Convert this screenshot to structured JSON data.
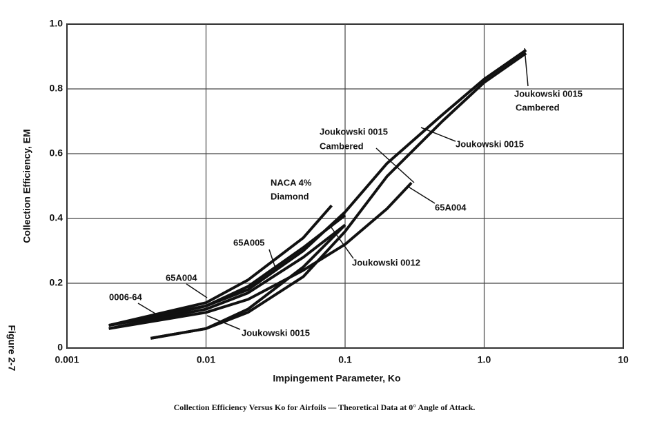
{
  "chart_data": {
    "type": "line",
    "title": "Collection Efficiency Versus Ko for Airfoils — Theoretical Data at 0° Angle of Attack.",
    "x_label": "Impingement Parameter, Ko",
    "y_label": "Collection Efficiency, EM",
    "side_label": "Figure 2-7",
    "x_scale": "log",
    "xlim": [
      0.001,
      10
    ],
    "xticks": [
      0.001,
      0.01,
      0.1,
      {
        "value": 1,
        "label": "1.0"
      },
      10
    ],
    "ylim": [
      0,
      1
    ],
    "yticks": [
      0,
      0.2,
      0.4,
      0.6,
      0.8,
      {
        "value": 1,
        "label": "1.0"
      }
    ],
    "grid": true,
    "series": [
      {
        "color": "#111111",
        "x": [
          0.002,
          0.005,
          0.01,
          0.02,
          0.05,
          0.1,
          0.2,
          0.5,
          1,
          2
        ],
        "values": [
          0.07,
          0.1,
          0.13,
          0.18,
          0.3,
          0.42,
          0.57,
          0.72,
          0.83,
          0.92
        ]
      },
      {
        "color": "#111111",
        "x": [
          0.004,
          0.01,
          0.02,
          0.05,
          0.1,
          0.2,
          0.5,
          1,
          2
        ],
        "values": [
          0.03,
          0.06,
          0.11,
          0.22,
          0.36,
          0.53,
          0.7,
          0.82,
          0.91
        ]
      },
      {
        "color": "#111111",
        "x": [
          0.004,
          0.01,
          0.02,
          0.05,
          0.1
        ],
        "values": [
          0.03,
          0.06,
          0.12,
          0.25,
          0.38
        ]
      },
      {
        "color": "#111111",
        "x": [
          0.002,
          0.01,
          0.02,
          0.05,
          0.1,
          0.2,
          0.3
        ],
        "values": [
          0.06,
          0.11,
          0.15,
          0.24,
          0.32,
          0.43,
          0.51
        ]
      },
      {
        "color": "#111111",
        "x": [
          0.002,
          0.01,
          0.02,
          0.05,
          0.1
        ],
        "values": [
          0.07,
          0.13,
          0.19,
          0.31,
          0.41
        ]
      },
      {
        "color": "#111111",
        "x": [
          0.002,
          0.01,
          0.02,
          0.05,
          0.08
        ],
        "values": [
          0.07,
          0.14,
          0.21,
          0.34,
          0.44
        ]
      },
      {
        "color": "#111111",
        "x": [
          0.002,
          0.01,
          0.02,
          0.05,
          0.1
        ],
        "values": [
          0.06,
          0.12,
          0.17,
          0.28,
          0.38
        ]
      }
    ],
    "annotations": [
      "Joukowski 0015",
      "Cambered",
      "Joukowski 0015",
      "Cambered",
      "Joukowski 0015",
      "NACA 4%",
      "Diamond",
      "65A004",
      "65A005",
      "Joukowski 0012",
      "65A004",
      "0006-64",
      "Joukowski 0015"
    ]
  }
}
